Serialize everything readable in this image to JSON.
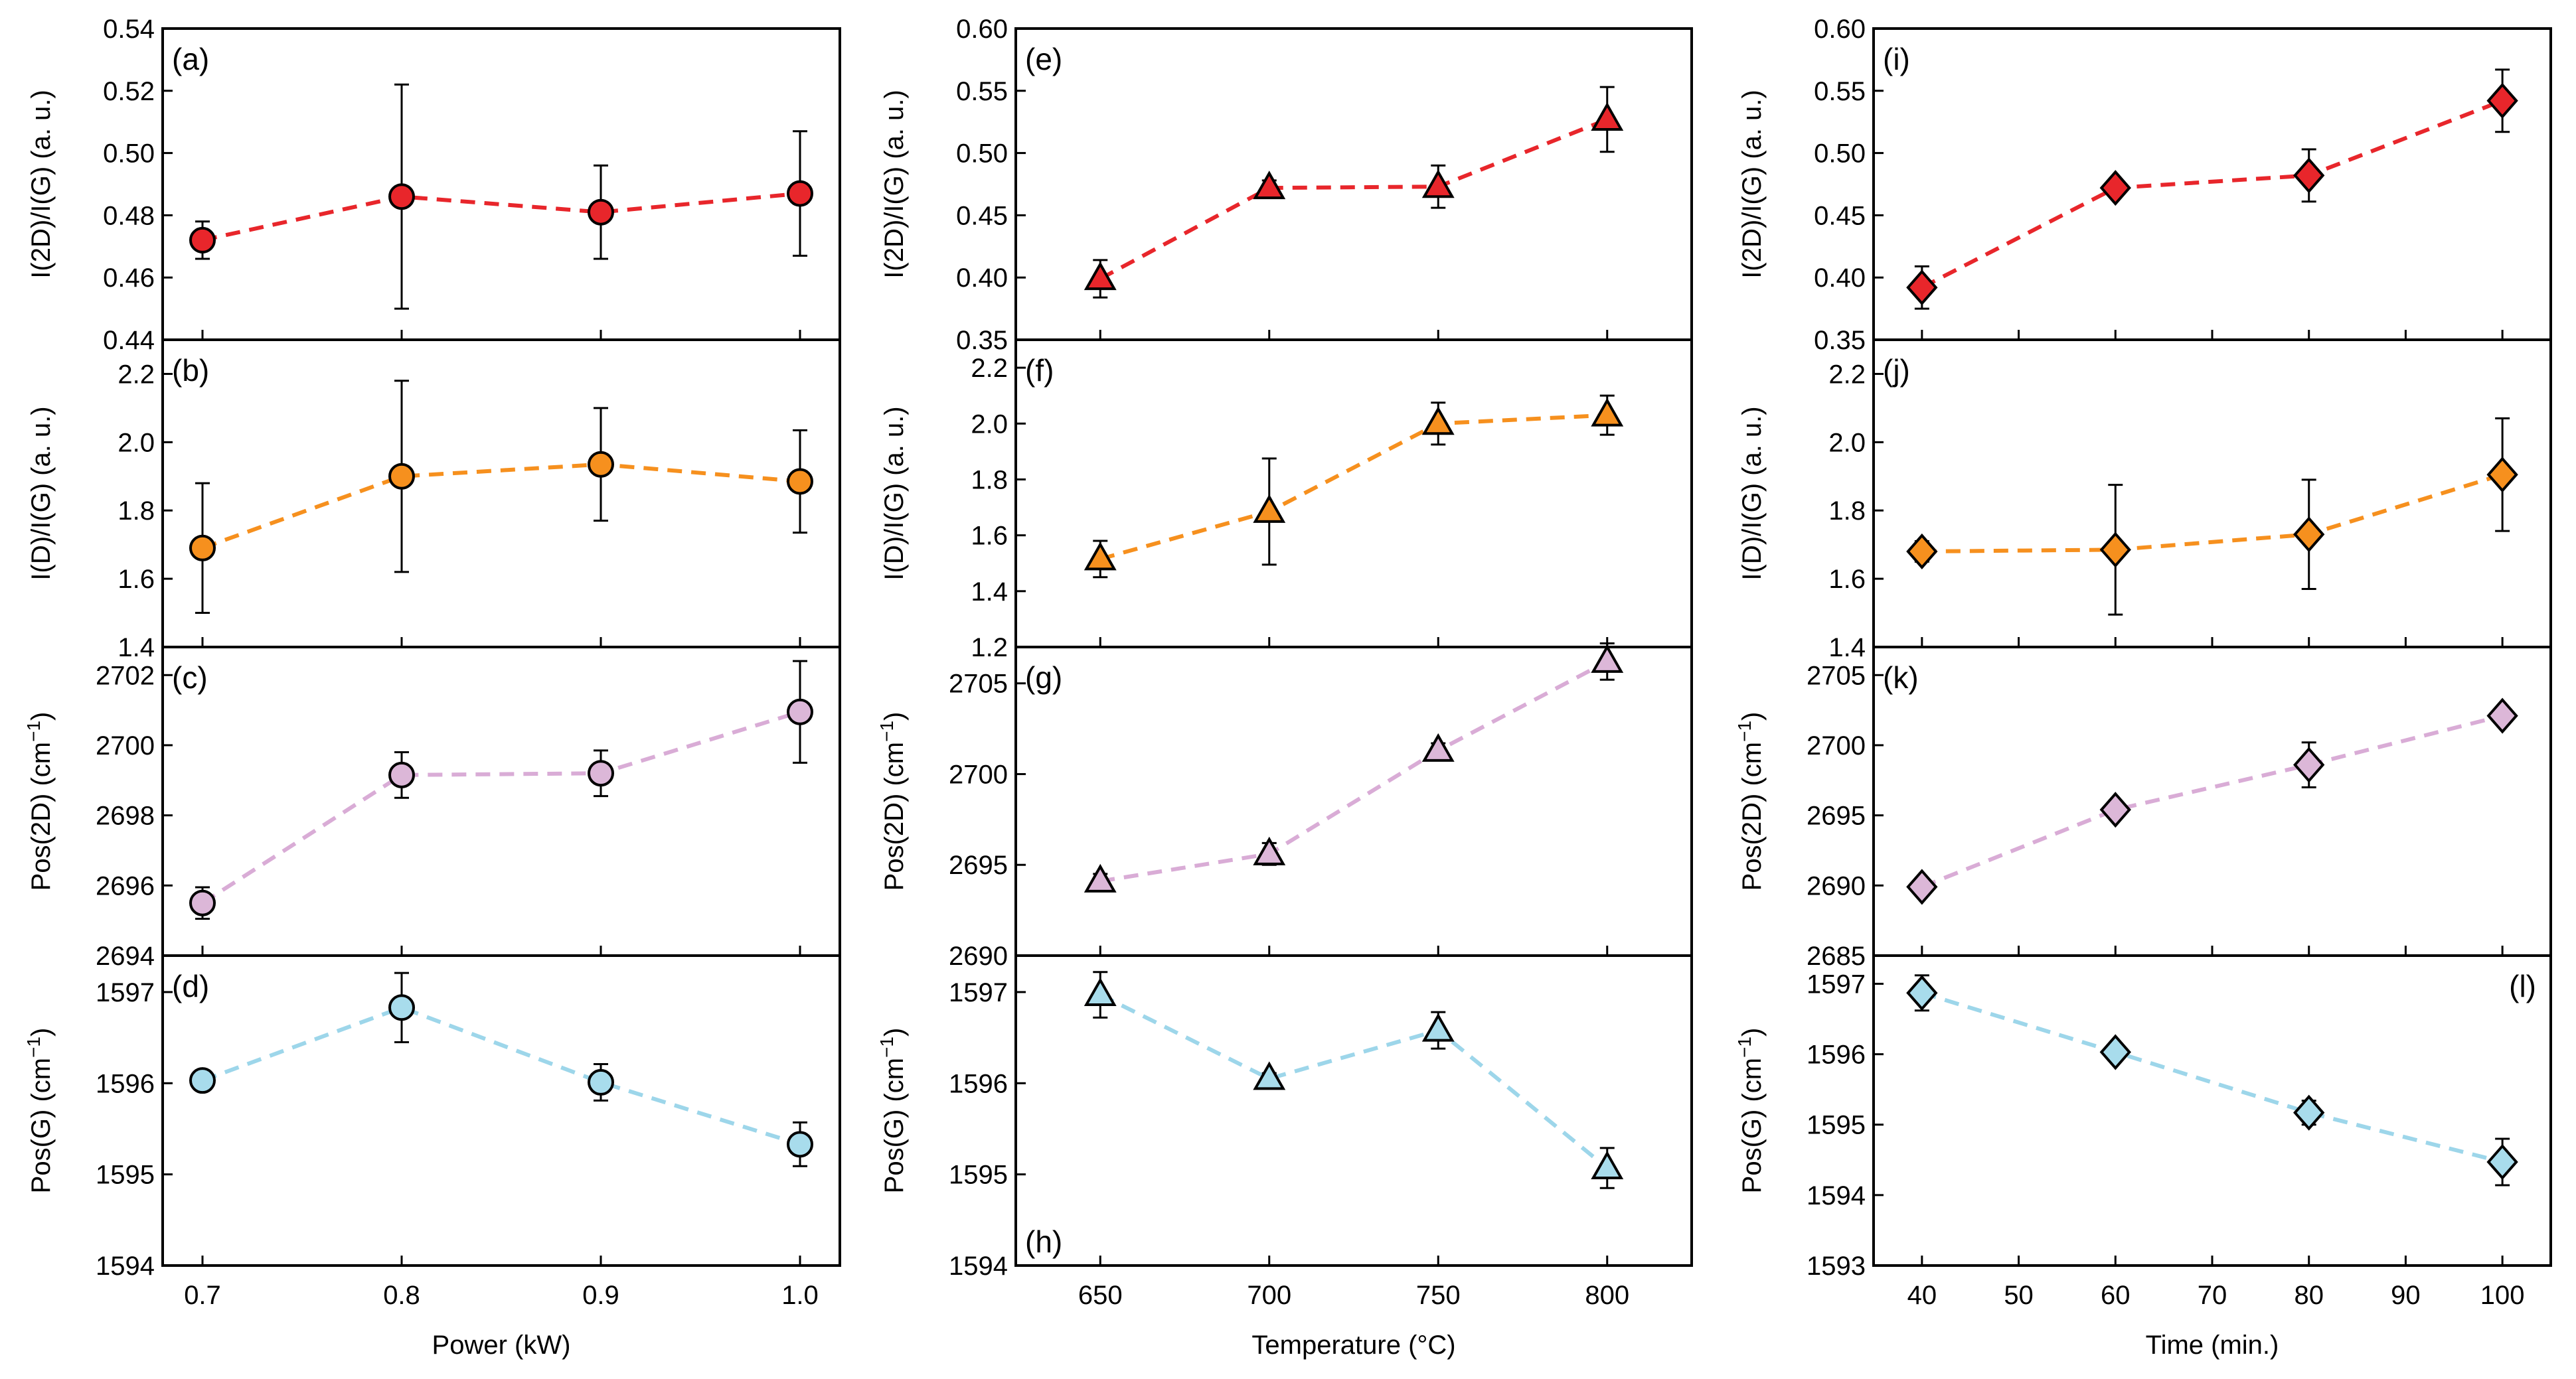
{
  "figure": {
    "columns": [
      {
        "xlabel": "Power (kW)"
      },
      {
        "xlabel": "Temperature (°C)"
      },
      {
        "xlabel": "Time (min.)"
      }
    ],
    "rows": [
      {
        "ylabel": "I(2D)/I(G) (a. u.)"
      },
      {
        "ylabel": "I(D)/I(G) (a. u.)"
      },
      {
        "ylabel": "Pos(2D) (cm",
        "sup": "−1",
        "tail": ")"
      },
      {
        "ylabel": "Pos(G) (cm",
        "sup": "−1",
        "tail": ")"
      }
    ]
  },
  "chart_data": [
    {
      "id": "a",
      "label": "(a)",
      "type": "scatter",
      "col": 0,
      "row": 0,
      "xlabel": "Power (kW)",
      "ylabel": "I(2D)/I(G) (a. u.)",
      "x": [
        0.7,
        0.8,
        0.9,
        1.0
      ],
      "y": [
        0.472,
        0.486,
        0.481,
        0.487
      ],
      "err": [
        0.006,
        0.036,
        0.015,
        0.02
      ],
      "xlim": [
        0.68,
        1.02
      ],
      "xticks": [
        0.7,
        0.8,
        0.9,
        1.0
      ],
      "xtick_labels": [
        "0.7",
        "0.8",
        "0.9",
        "1.0"
      ],
      "ylim": [
        0.44,
        0.54
      ],
      "yticks": [
        0.44,
        0.46,
        0.48,
        0.5,
        0.52,
        0.54
      ],
      "ytick_labels": [
        "0.44",
        "0.46",
        "0.48",
        "0.50",
        "0.52",
        "0.54"
      ],
      "marker": "circle",
      "color": "#e8262b",
      "line_color": "#e8262b"
    },
    {
      "id": "b",
      "label": "(b)",
      "type": "scatter",
      "col": 0,
      "row": 1,
      "xlabel": "Power (kW)",
      "ylabel": "I(D)/I(G) (a. u.)",
      "x": [
        0.7,
        0.8,
        0.9,
        1.0
      ],
      "y": [
        1.69,
        1.9,
        1.935,
        1.885
      ],
      "err": [
        0.19,
        0.28,
        0.165,
        0.15
      ],
      "xlim": [
        0.68,
        1.02
      ],
      "xticks": [
        0.7,
        0.8,
        0.9,
        1.0
      ],
      "xtick_labels": [
        "0.7",
        "0.8",
        "0.9",
        "1.0"
      ],
      "ylim": [
        1.4,
        2.3
      ],
      "yticks": [
        1.4,
        1.6,
        1.8,
        2.0,
        2.2
      ],
      "ytick_labels": [
        "1.4",
        "1.6",
        "1.8",
        "2.0",
        "2.2"
      ],
      "marker": "circle",
      "color": "#f6901e",
      "line_color": "#f6901e"
    },
    {
      "id": "c",
      "label": "(c)",
      "type": "scatter",
      "col": 0,
      "row": 2,
      "xlabel": "Power (kW)",
      "ylabel": "Pos(2D) (cm−1)",
      "x": [
        0.7,
        0.8,
        0.9,
        1.0
      ],
      "y": [
        2695.5,
        2699.15,
        2699.2,
        2700.95
      ],
      "err": [
        0.45,
        0.65,
        0.65,
        1.45
      ],
      "xlim": [
        0.68,
        1.02
      ],
      "xticks": [
        0.7,
        0.8,
        0.9,
        1.0
      ],
      "xtick_labels": [
        "0.7",
        "0.8",
        "0.9",
        "1.0"
      ],
      "ylim": [
        2694,
        2702.8
      ],
      "yticks": [
        2694,
        2696,
        2698,
        2700,
        2702
      ],
      "ytick_labels": [
        "2694",
        "2696",
        "2698",
        "2700",
        "2702"
      ],
      "marker": "circle",
      "color": "#dcb7d8",
      "line_color": "#d9acd6"
    },
    {
      "id": "d",
      "label": "(d)",
      "type": "scatter",
      "col": 0,
      "row": 3,
      "xlabel": "Power (kW)",
      "ylabel": "Pos(G) (cm−1)",
      "x": [
        0.7,
        0.8,
        0.9,
        1.0
      ],
      "y": [
        1596.03,
        1596.83,
        1596.01,
        1595.33
      ],
      "err": [
        0.05,
        0.38,
        0.2,
        0.24
      ],
      "xlim": [
        0.68,
        1.02
      ],
      "xticks": [
        0.7,
        0.8,
        0.9,
        1.0
      ],
      "xtick_labels": [
        "0.7",
        "0.8",
        "0.9",
        "1.0"
      ],
      "ylim": [
        1594,
        1597.4
      ],
      "yticks": [
        1594,
        1595,
        1596,
        1597
      ],
      "ytick_labels": [
        "1594",
        "1595",
        "1596",
        "1597"
      ],
      "marker": "circle",
      "color": "#a8dcec",
      "line_color": "#9dd6ea"
    },
    {
      "id": "e",
      "label": "(e)",
      "type": "scatter",
      "col": 1,
      "row": 0,
      "xlabel": "Temperature (°C)",
      "ylabel": "I(2D)/I(G) (a. u.)",
      "x": [
        650,
        700,
        750,
        800
      ],
      "y": [
        0.399,
        0.472,
        0.473,
        0.527
      ],
      "err": [
        0.015,
        0.006,
        0.017,
        0.026
      ],
      "xlim": [
        625,
        825
      ],
      "xticks": [
        650,
        700,
        750,
        800
      ],
      "xtick_labels": [
        "650",
        "700",
        "750",
        "800"
      ],
      "ylim": [
        0.35,
        0.6
      ],
      "yticks": [
        0.35,
        0.4,
        0.45,
        0.5,
        0.55,
        0.6
      ],
      "ytick_labels": [
        "0.35",
        "0.40",
        "0.45",
        "0.50",
        "0.55",
        "0.60"
      ],
      "marker": "triangle",
      "color": "#e8262b",
      "line_color": "#e8262b"
    },
    {
      "id": "f",
      "label": "(f)",
      "type": "scatter",
      "col": 1,
      "row": 1,
      "xlabel": "Temperature (°C)",
      "ylabel": "I(D)/I(G) (a. u.)",
      "x": [
        650,
        700,
        750,
        800
      ],
      "y": [
        1.515,
        1.685,
        2.0,
        2.03
      ],
      "err": [
        0.065,
        0.19,
        0.075,
        0.07
      ],
      "xlim": [
        625,
        825
      ],
      "xticks": [
        650,
        700,
        750,
        800
      ],
      "xtick_labels": [
        "650",
        "700",
        "750",
        "800"
      ],
      "ylim": [
        1.2,
        2.3
      ],
      "yticks": [
        1.2,
        1.4,
        1.6,
        1.8,
        2.0,
        2.2
      ],
      "ytick_labels": [
        "1.2",
        "1.4",
        "1.6",
        "1.8",
        "2.0",
        "2.2"
      ],
      "marker": "triangle",
      "color": "#f6901e",
      "line_color": "#f6901e"
    },
    {
      "id": "g",
      "label": "(g)",
      "type": "scatter",
      "col": 1,
      "row": 2,
      "xlabel": "Temperature (°C)",
      "ylabel": "Pos(2D) (cm−1)",
      "x": [
        650,
        700,
        750,
        800
      ],
      "y": [
        2694.1,
        2695.6,
        2701.3,
        2706.2
      ],
      "err": [
        0.4,
        0.6,
        0.4,
        1.0
      ],
      "xlim": [
        625,
        825
      ],
      "xticks": [
        650,
        700,
        750,
        800
      ],
      "xtick_labels": [
        "650",
        "700",
        "750",
        "800"
      ],
      "ylim": [
        2690,
        2707
      ],
      "yticks": [
        2690,
        2695,
        2700,
        2705
      ],
      "ytick_labels": [
        "2690",
        "2695",
        "2700",
        "2705"
      ],
      "marker": "triangle",
      "color": "#dcb7d8",
      "line_color": "#d9acd6"
    },
    {
      "id": "h",
      "label": "(h)",
      "type": "scatter",
      "col": 1,
      "row": 3,
      "xlabel": "Temperature (°C)",
      "ylabel": "Pos(G) (cm−1)",
      "x": [
        650,
        700,
        750,
        800
      ],
      "y": [
        1596.97,
        1596.05,
        1596.58,
        1595.07
      ],
      "err": [
        0.25,
        0.06,
        0.2,
        0.22
      ],
      "xlim": [
        625,
        825
      ],
      "xticks": [
        650,
        700,
        750,
        800
      ],
      "xtick_labels": [
        "650",
        "700",
        "750",
        "800"
      ],
      "ylim": [
        1594,
        1597.4
      ],
      "yticks": [
        1594,
        1595,
        1596,
        1597
      ],
      "ytick_labels": [
        "1594",
        "1595",
        "1596",
        "1597"
      ],
      "marker": "triangle",
      "color": "#a8dcec",
      "line_color": "#9dd6ea"
    },
    {
      "id": "i",
      "label": "(i)",
      "type": "scatter",
      "col": 2,
      "row": 0,
      "xlabel": "Time (min.)",
      "ylabel": "I(2D)/I(G) (a. u.)",
      "x": [
        40,
        60,
        80,
        100
      ],
      "y": [
        0.392,
        0.472,
        0.482,
        0.542
      ],
      "err": [
        0.017,
        0.006,
        0.021,
        0.025
      ],
      "xlim": [
        35,
        105
      ],
      "xticks": [
        40,
        50,
        60,
        70,
        80,
        90,
        100
      ],
      "xtick_labels": [
        "40",
        "50",
        "60",
        "70",
        "80",
        "90",
        "100"
      ],
      "ylim": [
        0.35,
        0.6
      ],
      "yticks": [
        0.35,
        0.4,
        0.45,
        0.5,
        0.55,
        0.6
      ],
      "ytick_labels": [
        "0.35",
        "0.40",
        "0.45",
        "0.50",
        "0.55",
        "0.60"
      ],
      "marker": "diamond",
      "color": "#e8262b",
      "line_color": "#e8262b"
    },
    {
      "id": "j",
      "label": "(j)",
      "type": "scatter",
      "col": 2,
      "row": 1,
      "xlabel": "Time (min.)",
      "ylabel": "I(D)/I(G) (a. u.)",
      "x": [
        40,
        60,
        80,
        100
      ],
      "y": [
        1.68,
        1.685,
        1.73,
        1.905
      ],
      "err": [
        0.03,
        0.19,
        0.16,
        0.165
      ],
      "xlim": [
        35,
        105
      ],
      "xticks": [
        40,
        50,
        60,
        70,
        80,
        90,
        100
      ],
      "xtick_labels": [
        "40",
        "50",
        "60",
        "70",
        "80",
        "90",
        "100"
      ],
      "ylim": [
        1.4,
        2.3
      ],
      "yticks": [
        1.4,
        1.6,
        1.8,
        2.0,
        2.2
      ],
      "ytick_labels": [
        "1.4",
        "1.6",
        "1.8",
        "2.0",
        "2.2"
      ],
      "marker": "diamond",
      "color": "#f6901e",
      "line_color": "#f6901e"
    },
    {
      "id": "k",
      "label": "(k)",
      "type": "scatter",
      "col": 2,
      "row": 2,
      "xlabel": "Time (min.)",
      "ylabel": "Pos(2D) (cm−1)",
      "x": [
        40,
        60,
        80,
        100
      ],
      "y": [
        2689.9,
        2695.4,
        2698.6,
        2702.1
      ],
      "err": [
        0.4,
        0.6,
        1.6,
        0.5
      ],
      "xlim": [
        35,
        105
      ],
      "xticks": [
        40,
        50,
        60,
        70,
        80,
        90,
        100
      ],
      "xtick_labels": [
        "40",
        "50",
        "60",
        "70",
        "80",
        "90",
        "100"
      ],
      "ylim": [
        2685,
        2707
      ],
      "yticks": [
        2685,
        2690,
        2695,
        2700,
        2705
      ],
      "ytick_labels": [
        "2685",
        "2690",
        "2695",
        "2700",
        "2705"
      ],
      "marker": "diamond",
      "color": "#dcb7d8",
      "line_color": "#d9acd6"
    },
    {
      "id": "l",
      "label": "(l)",
      "type": "scatter",
      "col": 2,
      "row": 3,
      "xlabel": "Time (min.)",
      "ylabel": "Pos(G) (cm−1)",
      "x": [
        40,
        60,
        80,
        100
      ],
      "y": [
        1596.87,
        1596.03,
        1595.17,
        1594.47
      ],
      "err": [
        0.25,
        0.06,
        0.17,
        0.33
      ],
      "xlim": [
        35,
        105
      ],
      "xticks": [
        40,
        50,
        60,
        70,
        80,
        90,
        100
      ],
      "xtick_labels": [
        "40",
        "50",
        "60",
        "70",
        "80",
        "90",
        "100"
      ],
      "ylim": [
        1593,
        1597.4
      ],
      "yticks": [
        1593,
        1594,
        1595,
        1596,
        1597
      ],
      "ytick_labels": [
        "1593",
        "1594",
        "1595",
        "1596",
        "1597"
      ],
      "marker": "diamond",
      "color": "#a8dcec",
      "line_color": "#9dd6ea"
    }
  ]
}
